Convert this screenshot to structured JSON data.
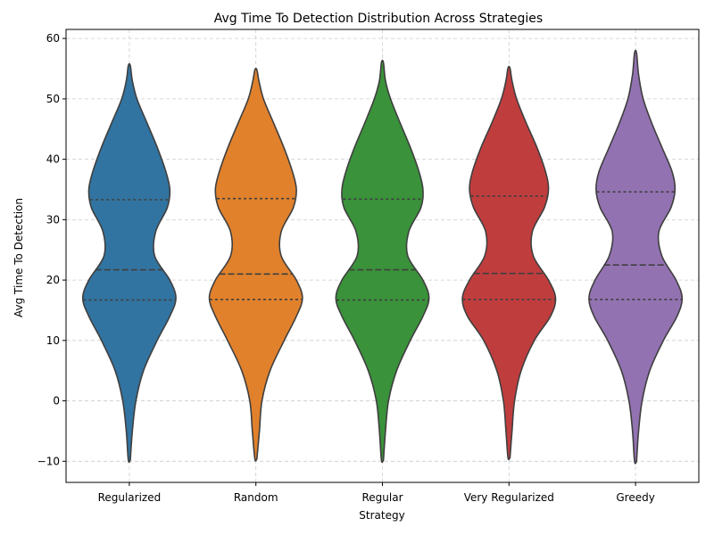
{
  "chart_data": {
    "type": "violin",
    "title": "Avg Time To Detection Distribution Across Strategies",
    "xlabel": "Strategy",
    "ylabel": "Avg Time To Detection",
    "ylim": [
      -13.5,
      61.5
    ],
    "yticks": [
      -10,
      0,
      10,
      20,
      30,
      40,
      50,
      60
    ],
    "ytick_labels": [
      "−10",
      "0",
      "10",
      "20",
      "30",
      "40",
      "50",
      "60"
    ],
    "grid": true,
    "inner": "quartile",
    "categories": [
      "Regularized",
      "Random",
      "Regular",
      "Very Regularized",
      "Greedy"
    ],
    "series": [
      {
        "category": "Regularized",
        "color": "#3274a1",
        "min": -9.8,
        "max": 55.5,
        "q1": 16.7,
        "median": 21.7,
        "q3": 33.3,
        "density": [
          [
            -9.8,
            0.02
          ],
          [
            -5,
            0.06
          ],
          [
            0,
            0.13
          ],
          [
            5,
            0.28
          ],
          [
            10,
            0.55
          ],
          [
            14,
            0.8
          ],
          [
            17,
            0.92
          ],
          [
            20,
            0.8
          ],
          [
            24,
            0.5
          ],
          [
            28,
            0.52
          ],
          [
            32,
            0.75
          ],
          [
            35,
            0.8
          ],
          [
            38,
            0.72
          ],
          [
            42,
            0.55
          ],
          [
            46,
            0.35
          ],
          [
            50,
            0.15
          ],
          [
            53,
            0.06
          ],
          [
            55.5,
            0.02
          ]
        ]
      },
      {
        "category": "Random",
        "color": "#e1812c",
        "min": -9.6,
        "max": 54.8,
        "q1": 16.8,
        "median": 21.0,
        "q3": 33.5,
        "density": [
          [
            -9.6,
            0.02
          ],
          [
            -5,
            0.07
          ],
          [
            0,
            0.12
          ],
          [
            5,
            0.28
          ],
          [
            10,
            0.56
          ],
          [
            14,
            0.8
          ],
          [
            17,
            0.92
          ],
          [
            20,
            0.8
          ],
          [
            24,
            0.5
          ],
          [
            28,
            0.5
          ],
          [
            32,
            0.74
          ],
          [
            35,
            0.8
          ],
          [
            38,
            0.72
          ],
          [
            42,
            0.55
          ],
          [
            46,
            0.35
          ],
          [
            50,
            0.15
          ],
          [
            53,
            0.06
          ],
          [
            54.8,
            0.02
          ]
        ]
      },
      {
        "category": "Regular",
        "color": "#3a923a",
        "min": -9.8,
        "max": 56.0,
        "q1": 16.7,
        "median": 21.7,
        "q3": 33.4,
        "density": [
          [
            -9.8,
            0.02
          ],
          [
            -5,
            0.06
          ],
          [
            0,
            0.12
          ],
          [
            5,
            0.28
          ],
          [
            10,
            0.55
          ],
          [
            14,
            0.8
          ],
          [
            17,
            0.92
          ],
          [
            20,
            0.8
          ],
          [
            24,
            0.5
          ],
          [
            28,
            0.52
          ],
          [
            32,
            0.76
          ],
          [
            35,
            0.8
          ],
          [
            38,
            0.72
          ],
          [
            42,
            0.55
          ],
          [
            46,
            0.35
          ],
          [
            50,
            0.16
          ],
          [
            53,
            0.06
          ],
          [
            56,
            0.02
          ]
        ]
      },
      {
        "category": "Very Regularized",
        "color": "#c03d3e",
        "min": -9.4,
        "max": 55.1,
        "q1": 16.8,
        "median": 21.1,
        "q3": 33.9,
        "density": [
          [
            -9.4,
            0.02
          ],
          [
            -5,
            0.06
          ],
          [
            0,
            0.11
          ],
          [
            5,
            0.24
          ],
          [
            10,
            0.5
          ],
          [
            14,
            0.82
          ],
          [
            17,
            0.92
          ],
          [
            20,
            0.78
          ],
          [
            24,
            0.48
          ],
          [
            28,
            0.46
          ],
          [
            32,
            0.7
          ],
          [
            35,
            0.78
          ],
          [
            38,
            0.72
          ],
          [
            42,
            0.55
          ],
          [
            46,
            0.34
          ],
          [
            50,
            0.15
          ],
          [
            53,
            0.06
          ],
          [
            55.1,
            0.02
          ]
        ]
      },
      {
        "category": "Greedy",
        "color": "#9372b2",
        "min": -10.0,
        "max": 57.6,
        "q1": 16.8,
        "median": 22.5,
        "q3": 34.6,
        "density": [
          [
            -10,
            0.02
          ],
          [
            -5,
            0.06
          ],
          [
            0,
            0.13
          ],
          [
            5,
            0.28
          ],
          [
            10,
            0.55
          ],
          [
            14,
            0.82
          ],
          [
            17,
            0.92
          ],
          [
            20,
            0.8
          ],
          [
            24,
            0.52
          ],
          [
            28,
            0.46
          ],
          [
            32,
            0.7
          ],
          [
            35,
            0.78
          ],
          [
            38,
            0.72
          ],
          [
            42,
            0.52
          ],
          [
            46,
            0.32
          ],
          [
            50,
            0.15
          ],
          [
            54,
            0.06
          ],
          [
            57.6,
            0.02
          ]
        ]
      }
    ]
  }
}
